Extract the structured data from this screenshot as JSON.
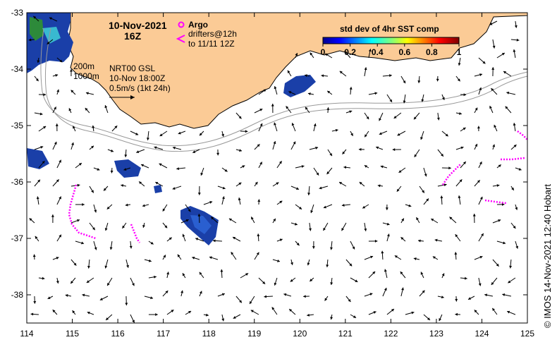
{
  "title": {
    "date": "10-Nov-2021",
    "time": "16Z"
  },
  "legend": {
    "argo_label": "Argo",
    "drifters_label": "drifters@12h",
    "drifters_range": "to 11/11 12Z",
    "argo_color": "#ff00ff",
    "drifter_color": "#ff00ff"
  },
  "isobaths": {
    "shallow": "200m",
    "deep": "1000m"
  },
  "product": {
    "name": "NRT00 GSL",
    "valid": "10-Nov 18:00Z",
    "scale": "0.5m/s (1kt 24h)"
  },
  "colorbar": {
    "title": "std dev of 4hr SST comp",
    "ticks": [
      "0",
      "0.2",
      "0.4",
      "0.6",
      "0.8",
      "1"
    ],
    "min": 0,
    "max": 1
  },
  "axes": {
    "x_ticks": [
      "114",
      "115",
      "116",
      "117",
      "118",
      "119",
      "120",
      "121",
      "122",
      "123",
      "124",
      "125"
    ],
    "y_ticks": [
      "-33",
      "-34",
      "-35",
      "-36",
      "-37",
      "-38"
    ],
    "lon_range": [
      114,
      125
    ],
    "lat_range": [
      -38.5,
      -33
    ]
  },
  "credit": "© IMOS 14-Nov-2021 12:40 Hobart",
  "colors": {
    "land": "#fbcb96",
    "current_arrow": "#000000",
    "isobath": "#999999"
  }
}
